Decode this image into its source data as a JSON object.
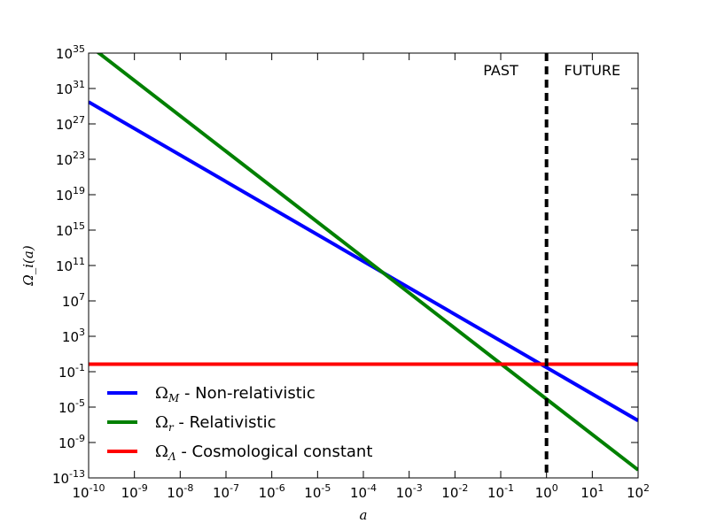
{
  "chart_data": {
    "type": "line",
    "xlabel": "a",
    "ylabel": "Ω_i(a)",
    "x_scale": "log",
    "y_scale": "log",
    "xlim": [
      1e-10,
      100
    ],
    "ylim": [
      1e-13,
      1e+35
    ],
    "grid": false,
    "legend_position": "lower-left",
    "x_ticks": [
      {
        "base": "10",
        "exp": "-10",
        "value": 1e-10
      },
      {
        "base": "10",
        "exp": "-9",
        "value": 1e-09
      },
      {
        "base": "10",
        "exp": "-8",
        "value": 1e-08
      },
      {
        "base": "10",
        "exp": "-7",
        "value": 1e-07
      },
      {
        "base": "10",
        "exp": "-6",
        "value": 1e-06
      },
      {
        "base": "10",
        "exp": "-5",
        "value": 1e-05
      },
      {
        "base": "10",
        "exp": "-4",
        "value": 0.0001
      },
      {
        "base": "10",
        "exp": "-3",
        "value": 0.001
      },
      {
        "base": "10",
        "exp": "-2",
        "value": 0.01
      },
      {
        "base": "10",
        "exp": "-1",
        "value": 0.1
      },
      {
        "base": "10",
        "exp": "0",
        "value": 1
      },
      {
        "base": "10",
        "exp": "1",
        "value": 10
      },
      {
        "base": "10",
        "exp": "2",
        "value": 100
      }
    ],
    "y_ticks": [
      {
        "base": "10",
        "exp": "35",
        "value": 1e+35
      },
      {
        "base": "10",
        "exp": "31",
        "value": 1e+31
      },
      {
        "base": "10",
        "exp": "27",
        "value": 1e+27
      },
      {
        "base": "10",
        "exp": "23",
        "value": 1e+23
      },
      {
        "base": "10",
        "exp": "19",
        "value": 1e+19
      },
      {
        "base": "10",
        "exp": "15",
        "value": 1000000000000000.0
      },
      {
        "base": "10",
        "exp": "11",
        "value": 100000000000.0
      },
      {
        "base": "10",
        "exp": "7",
        "value": 10000000.0
      },
      {
        "base": "10",
        "exp": "3",
        "value": 1000.0
      },
      {
        "base": "10",
        "exp": "-1",
        "value": 0.1
      },
      {
        "base": "10",
        "exp": "-5",
        "value": 1e-05
      },
      {
        "base": "10",
        "exp": "-9",
        "value": 1e-09
      },
      {
        "base": "10",
        "exp": "-13",
        "value": 1e-13
      }
    ],
    "series": [
      {
        "math": "Ω",
        "sub": "M",
        "label": " - Non-relativistic",
        "color": "#0000ff",
        "x": [
          1e-10,
          100
        ],
        "y": [
          3e+29,
          3e-07
        ]
      },
      {
        "math": "Ω",
        "sub": "r",
        "label": " - Relativistic",
        "color": "#008000",
        "x": [
          1e-10,
          100
        ],
        "y": [
          8e+35,
          8e-13
        ]
      },
      {
        "math": "Ω",
        "sub": "Λ",
        "label": " - Cosmological constant",
        "color": "#ff0000",
        "x": [
          1e-10,
          100
        ],
        "y": [
          0.7,
          0.7
        ]
      }
    ],
    "vline": {
      "x": 1,
      "style": "dashed",
      "color": "#000000"
    },
    "annotations": [
      {
        "text": "PAST",
        "x": 0.1,
        "y": 3e+32
      },
      {
        "text": "FUTURE",
        "x": 10,
        "y": 3e+32
      }
    ]
  }
}
